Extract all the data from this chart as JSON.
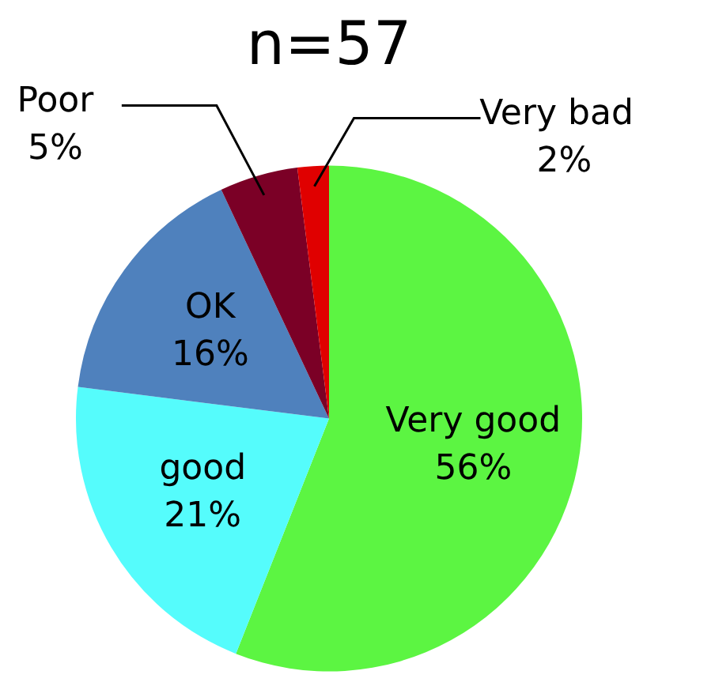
{
  "chart_data": {
    "type": "pie",
    "title": "n=57",
    "categories": [
      "Very good",
      "good",
      "OK",
      "Poor",
      "Very bad"
    ],
    "values": [
      56,
      21,
      16,
      5,
      2
    ],
    "colors": [
      "#5cf542",
      "#55fcfc",
      "#4f81bd",
      "#7b0026",
      "#e00000"
    ],
    "value_labels": [
      "56%",
      "21%",
      "16%",
      "5%",
      "2%"
    ],
    "legend": false
  }
}
